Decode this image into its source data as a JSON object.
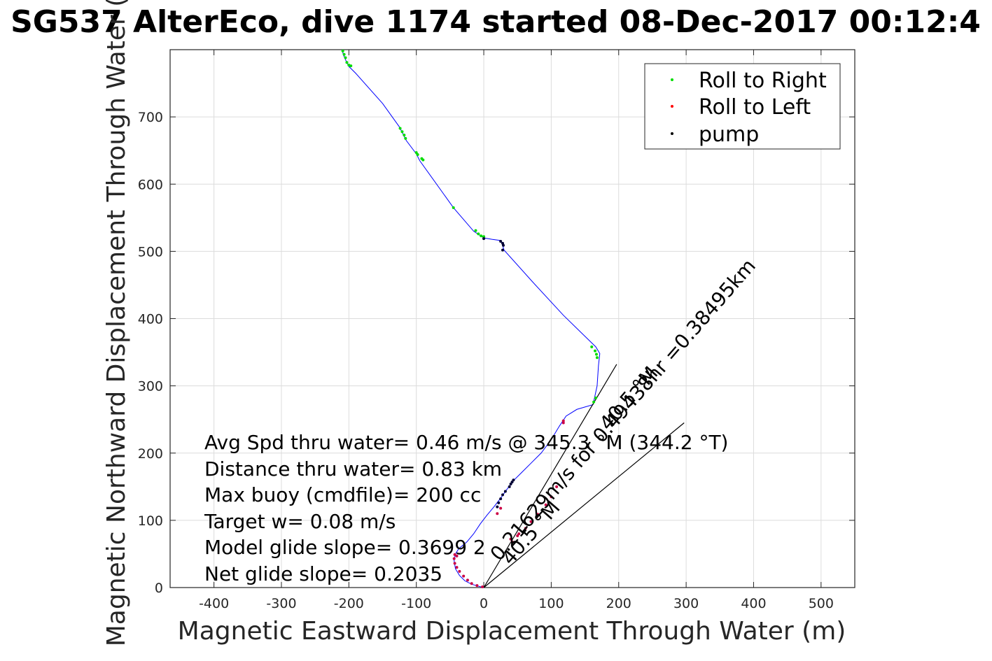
{
  "chart_data": {
    "type": "line",
    "title": "SG537 AlterEco, dive 1174 started 08-Dec-2017 00:12:4",
    "xlabel": "Magnetic Eastward Displacement Through Water (m)",
    "ylabel": "Magnetic Northward Displacement Through Water (",
    "xlim": [
      -465,
      550
    ],
    "ylim": [
      0,
      800
    ],
    "xticks": [
      -400,
      -300,
      -200,
      -100,
      0,
      100,
      200,
      300,
      400,
      500
    ],
    "yticks": [
      0,
      100,
      200,
      300,
      400,
      500,
      600,
      700
    ],
    "xtick_labels": [
      "-400",
      "-300",
      "-200",
      "-100",
      "0",
      "100",
      "200",
      "300",
      "400",
      "500"
    ],
    "ytick_labels": [
      "0",
      "100",
      "200",
      "300",
      "400",
      "500",
      "600",
      "700"
    ],
    "grid": true,
    "legend_position": "top-right",
    "legend": [
      {
        "label": "Roll to Right",
        "color": "#00dd00"
      },
      {
        "label": "Roll to Left",
        "color": "#ff0000"
      },
      {
        "label": "pump",
        "color": "#000000"
      }
    ],
    "track": {
      "color": "#0000ff",
      "x": [
        0,
        -8,
        -18,
        -28,
        -36,
        -42,
        -44,
        -42,
        -37,
        -32,
        -25,
        -15,
        -5,
        5,
        15,
        25,
        35,
        45,
        55,
        70,
        85,
        100,
        112,
        122,
        138,
        162,
        168,
        170,
        172,
        166,
        118,
        72,
        30,
        27,
        26,
        12,
        0,
        -15,
        -45,
        -95,
        -100,
        -115,
        -125,
        -150,
        -190,
        -200,
        -205,
        -208,
        -210
      ],
      "y": [
        0,
        2,
        5,
        10,
        18,
        28,
        40,
        50,
        58,
        62,
        68,
        80,
        95,
        108,
        120,
        133,
        147,
        160,
        170,
        185,
        200,
        220,
        240,
        255,
        265,
        272,
        300,
        330,
        348,
        358,
        405,
        455,
        502,
        512,
        516,
        518,
        520,
        530,
        565,
        635,
        645,
        665,
        685,
        720,
        765,
        775,
        785,
        792,
        800
      ]
    },
    "points": {
      "roll_right": {
        "color": "#00dd00",
        "x": [
          -209,
          -207,
          -205,
          -203,
          -200,
          -197,
          -124,
          -121,
          -118,
          -116,
          -100,
          -98,
          -92,
          -90,
          -45,
          -12,
          -8,
          -4,
          0,
          160,
          165,
          167,
          168,
          166,
          163
        ],
        "y": [
          798,
          793,
          788,
          781,
          777,
          776,
          683,
          678,
          673,
          668,
          647,
          644,
          638,
          636,
          565,
          531,
          526,
          523,
          522,
          358,
          352,
          347,
          342,
          282,
          276
        ]
      },
      "roll_left": {
        "color": "#cc0044",
        "x": [
          -2,
          -10,
          -18,
          -24,
          -30,
          -36,
          -40,
          -43,
          -44,
          -43,
          -40,
          42,
          50,
          62,
          70,
          80,
          92,
          100,
          108,
          118,
          20,
          25,
          118,
          40,
          52
        ],
        "y": [
          1,
          3,
          6,
          11,
          17,
          24,
          30,
          36,
          43,
          49,
          47,
          68,
          77,
          88,
          98,
          109,
          123,
          135,
          150,
          245,
          110,
          118,
          248,
          72,
          80
        ]
      },
      "pump": {
        "color": "#000033",
        "x": [
          25,
          28,
          29,
          28,
          0,
          20,
          22,
          25,
          28,
          32,
          38,
          40,
          42,
          44
        ],
        "y": [
          515,
          512,
          509,
          502,
          519,
          120,
          126,
          132,
          138,
          143,
          150,
          154,
          157,
          160
        ]
      }
    },
    "reference_lines": [
      {
        "from": [
          0,
          0
        ],
        "to": [
          197,
          332
        ],
        "color": "#000000"
      },
      {
        "from": [
          0,
          0
        ],
        "to": [
          297,
          245
        ],
        "color": "#000000"
      }
    ],
    "annotations": [
      "Avg Spd thru water=  0.46 m/s @ 345.3 °M (344.2 °T)",
      "Distance thru water=  0.83 km",
      "Max buoy (cmdfile)= 200 cc",
      "Target w= 0.08 m/s",
      "Model glide slope= 0.3699 2",
      "Net glide slope= 0.2035"
    ],
    "rotated_labels": [
      {
        "text": "0.21629m/s for 0.49438hr =0.38495km",
        "x": 23,
        "y": 38,
        "angle": -49.0
      },
      {
        "text": "40.5 °M",
        "x": 40,
        "y": 32,
        "angle": -49.0
      },
      {
        "text": "40.5 °M",
        "x": 185,
        "y": 232,
        "angle": -49.0
      }
    ]
  }
}
